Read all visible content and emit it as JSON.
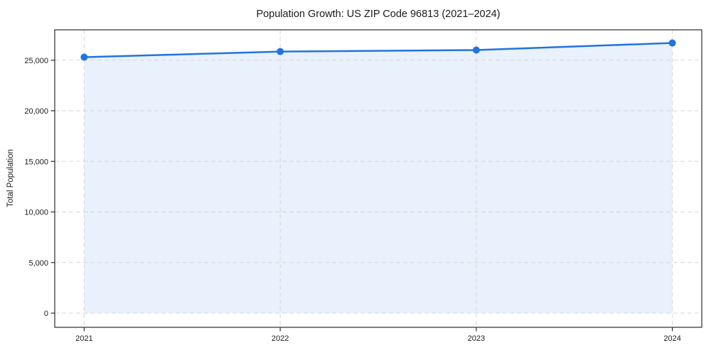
{
  "figure": {
    "background": "#ffffff",
    "plot_background": "#ffffff"
  },
  "chart_data": {
    "type": "area",
    "title": "Population Growth: US ZIP Code 96813 (2021–2024)",
    "xlabel": "",
    "ylabel": "Total Population",
    "x": [
      2021,
      2022,
      2023,
      2024
    ],
    "x_tick_labels": [
      "2021",
      "2022",
      "2023",
      "2024"
    ],
    "series": [
      {
        "name": "Total Population",
        "values": [
          25300,
          25850,
          26000,
          26700
        ]
      }
    ],
    "yticks": [
      0,
      5000,
      10000,
      15000,
      20000,
      25000
    ],
    "ytick_labels": [
      "0",
      "5,000",
      "10,000",
      "15,000",
      "20,000",
      "25,000"
    ],
    "xlim": [
      2020.85,
      2024.15
    ],
    "ylim": [
      -1400,
      28000
    ],
    "fill_baseline": 0,
    "grid": true,
    "grid_style": "dashed",
    "legend": "none",
    "colors": {
      "line": "#2273e0",
      "marker": "#2273e0",
      "fill": "#e9f1fc",
      "grid": "#d7d7d7",
      "spine": "#2b2b2b",
      "text": "#1a1a1a"
    },
    "marker": "circle",
    "marker_radius": 5,
    "line_width": 2.5
  }
}
